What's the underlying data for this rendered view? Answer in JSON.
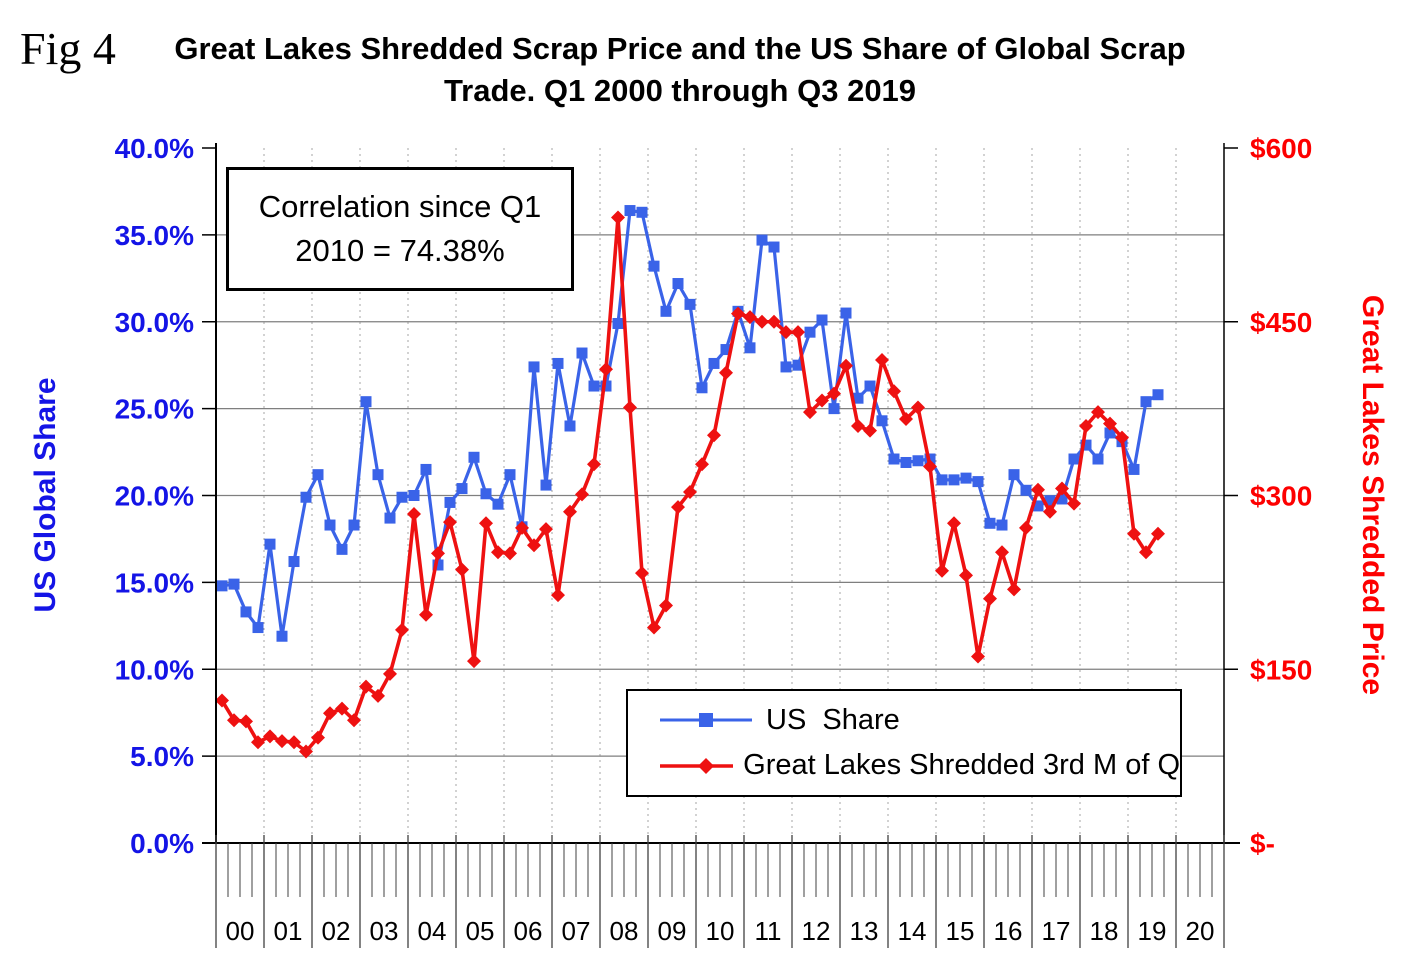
{
  "header": {
    "fig_label": "Fig 4",
    "title_line1": "Great Lakes Shredded Scrap Price and the US Share of Global Scrap",
    "title_line2": "Trade. Q1 2000 through Q3 2019"
  },
  "annotation": {
    "line1": "Correlation since Q1",
    "line2": "2010 = 74.38%"
  },
  "colors": {
    "share_series": "#3a63e8",
    "price_series": "#ee1111",
    "share_labels": "#1414e6",
    "price_labels": "#fd0000",
    "gridline": "#7f7f7f",
    "year_line": "#a6a6a6",
    "axis": "#000000"
  },
  "chart_data": {
    "type": "line",
    "title": "Great Lakes Shredded Scrap Price and the US Share of Global Scrap Trade. Q1 2000 through Q3 2019",
    "x_start": "2000 Q1",
    "x_end": "2019 Q3",
    "x_frequency": "quarterly",
    "x_year_labels": [
      "00",
      "01",
      "02",
      "03",
      "04",
      "05",
      "06",
      "07",
      "08",
      "09",
      "10",
      "11",
      "12",
      "13",
      "14",
      "15",
      "16",
      "17",
      "18",
      "19",
      "20"
    ],
    "grid": "horizontal solid gray every 5%, vertical dotted gray at year boundaries",
    "legend_position": "inside lower right box",
    "y_left": {
      "title": "US Global Share",
      "min": 0,
      "max": 40,
      "unit": "%",
      "ticks": [
        "40.0%",
        "35.0%",
        "30.0%",
        "25.0%",
        "20.0%",
        "15.0%",
        "10.0%",
        "5.0%",
        "0.0%"
      ]
    },
    "y_right": {
      "title": "Great Lakes Shredded Price",
      "min": 0,
      "max": 600,
      "unit": "$",
      "ticks": [
        "$600",
        "$450",
        "$300",
        "$150",
        "$-"
      ]
    },
    "legend": [
      {
        "label": "US  Share",
        "series": "share"
      },
      {
        "label": "Great Lakes Shredded 3rd M of Q",
        "series": "price"
      }
    ],
    "series": [
      {
        "name": "US Share",
        "axis": "left",
        "marker": "square",
        "values": [
          14.8,
          14.9,
          13.3,
          12.4,
          17.2,
          11.9,
          16.2,
          19.9,
          21.2,
          18.3,
          16.9,
          18.3,
          25.4,
          21.2,
          18.7,
          19.9,
          20.0,
          21.5,
          16.0,
          19.6,
          20.4,
          22.2,
          20.1,
          19.5,
          21.2,
          18.2,
          27.4,
          20.6,
          27.6,
          24.0,
          28.2,
          26.3,
          26.3,
          29.9,
          36.4,
          36.3,
          33.2,
          30.6,
          32.2,
          31.0,
          26.2,
          27.6,
          28.4,
          30.6,
          28.5,
          34.7,
          34.3,
          27.4,
          27.5,
          29.4,
          30.1,
          25.0,
          30.5,
          25.6,
          26.3,
          24.3,
          22.1,
          21.9,
          22.0,
          22.1,
          20.9,
          20.9,
          21.0,
          20.8,
          18.4,
          18.3,
          21.2,
          20.3,
          19.4,
          19.7,
          19.8,
          22.1,
          22.9,
          22.1,
          23.6,
          23.1,
          21.5,
          25.4,
          25.8
        ]
      },
      {
        "name": "Great Lakes Shredded 3rd M of Q",
        "axis": "right",
        "marker": "diamond",
        "values": [
          123,
          106,
          105,
          87,
          92,
          88,
          87,
          79,
          91,
          112,
          116,
          106,
          135,
          127,
          146,
          184,
          284,
          197,
          250,
          277,
          236,
          157,
          276,
          251,
          250,
          272,
          257,
          271,
          214,
          286,
          301,
          327,
          409,
          540,
          376,
          233,
          186,
          205,
          290,
          303,
          327,
          352,
          406,
          457,
          454,
          450,
          450,
          441,
          441,
          372,
          382,
          388,
          412,
          360,
          356,
          417,
          390,
          366,
          376,
          325,
          235,
          276,
          231,
          161,
          211,
          251,
          219,
          272,
          305,
          286,
          306,
          293,
          360,
          372,
          362,
          350,
          267,
          251,
          267
        ]
      }
    ]
  }
}
